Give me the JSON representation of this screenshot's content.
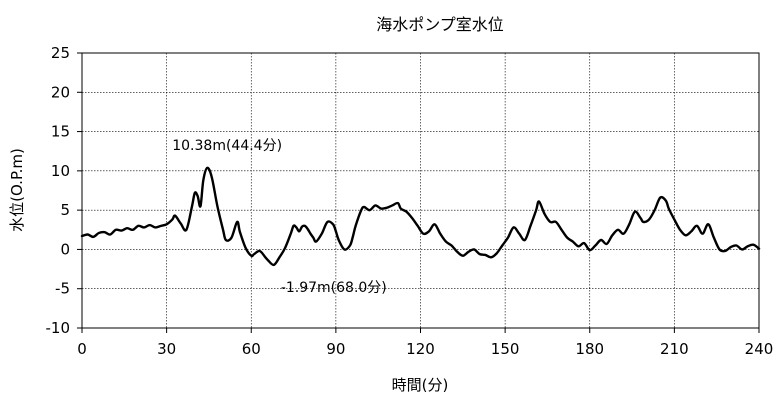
{
  "chart_data": {
    "type": "line",
    "title": "海水ポンプ室水位",
    "xlabel": "時間(分)",
    "ylabel": "水位(O.P.m)",
    "xlim": [
      0,
      240
    ],
    "ylim": [
      -10,
      25
    ],
    "xticks": [
      0,
      30,
      60,
      90,
      120,
      150,
      180,
      210,
      240
    ],
    "yticks": [
      -10,
      -5,
      0,
      5,
      10,
      15,
      20,
      25
    ],
    "grid": true,
    "series": [
      {
        "x": [
          0,
          2,
          4,
          6,
          8,
          10,
          12,
          14,
          16,
          18,
          20,
          22,
          24,
          26,
          28,
          30,
          32,
          33,
          35,
          37,
          39,
          40,
          41,
          42,
          43,
          44.4,
          46,
          48,
          50,
          51,
          53,
          55,
          56,
          58,
          60,
          61,
          63,
          65,
          66,
          68,
          70,
          72,
          74,
          75,
          76,
          77,
          78,
          79,
          80,
          81,
          82,
          83,
          85,
          87,
          89,
          90,
          91,
          93,
          95,
          96,
          97,
          99,
          100,
          102,
          104,
          106,
          108,
          110,
          112,
          113,
          115,
          117,
          119,
          121,
          123,
          125,
          127,
          129,
          131,
          133,
          135,
          137,
          139,
          141,
          143,
          145,
          147,
          149,
          151,
          153,
          155,
          157,
          159,
          161,
          162,
          164,
          166,
          168,
          170,
          172,
          174,
          176,
          178,
          180,
          182,
          184,
          186,
          188,
          190,
          192,
          194,
          196,
          198,
          199,
          201,
          203,
          205,
          207,
          208,
          210,
          212,
          214,
          216,
          218,
          220,
          222,
          224,
          226,
          228,
          230,
          232,
          234,
          236,
          238,
          240
        ],
        "y": [
          1.7,
          1.9,
          1.6,
          2.1,
          2.2,
          1.9,
          2.5,
          2.4,
          2.7,
          2.5,
          3.0,
          2.8,
          3.1,
          2.8,
          3.0,
          3.2,
          3.8,
          4.3,
          3.3,
          2.5,
          5.5,
          7.2,
          6.8,
          5.5,
          8.8,
          10.38,
          9.2,
          5.5,
          2.5,
          1.2,
          1.5,
          3.5,
          2.2,
          0.2,
          -0.8,
          -0.6,
          -0.2,
          -1.0,
          -1.4,
          -1.97,
          -1.0,
          0.2,
          2.0,
          3.0,
          2.8,
          2.3,
          2.9,
          3.0,
          2.6,
          2.0,
          1.5,
          1.0,
          2.0,
          3.5,
          3.2,
          2.3,
          1.2,
          0.0,
          0.5,
          1.6,
          3.0,
          5.0,
          5.4,
          5.0,
          5.6,
          5.2,
          5.3,
          5.6,
          5.9,
          5.2,
          4.8,
          4.0,
          3.0,
          2.0,
          2.3,
          3.2,
          2.0,
          1.0,
          0.5,
          -0.3,
          -0.8,
          -0.3,
          0.0,
          -0.6,
          -0.7,
          -1.0,
          -0.5,
          0.5,
          1.5,
          2.8,
          2.0,
          1.2,
          3.0,
          5.0,
          6.1,
          4.5,
          3.5,
          3.5,
          2.5,
          1.5,
          1.0,
          0.4,
          0.8,
          -0.1,
          0.5,
          1.2,
          0.7,
          1.8,
          2.5,
          2.0,
          3.2,
          4.8,
          4.0,
          3.5,
          3.8,
          5.0,
          6.6,
          6.2,
          5.2,
          3.8,
          2.5,
          1.8,
          2.3,
          3.0,
          2.0,
          3.2,
          1.5,
          0.0,
          -0.2,
          0.3,
          0.5,
          0.0,
          0.4,
          0.6,
          0.1
        ]
      }
    ],
    "annotations": [
      {
        "text": "10.38m(44.4分)",
        "x": 44.4,
        "y": 10.38
      },
      {
        "text": "-1.97m(68.0分)",
        "x": 68.0,
        "y": -1.97
      }
    ]
  }
}
